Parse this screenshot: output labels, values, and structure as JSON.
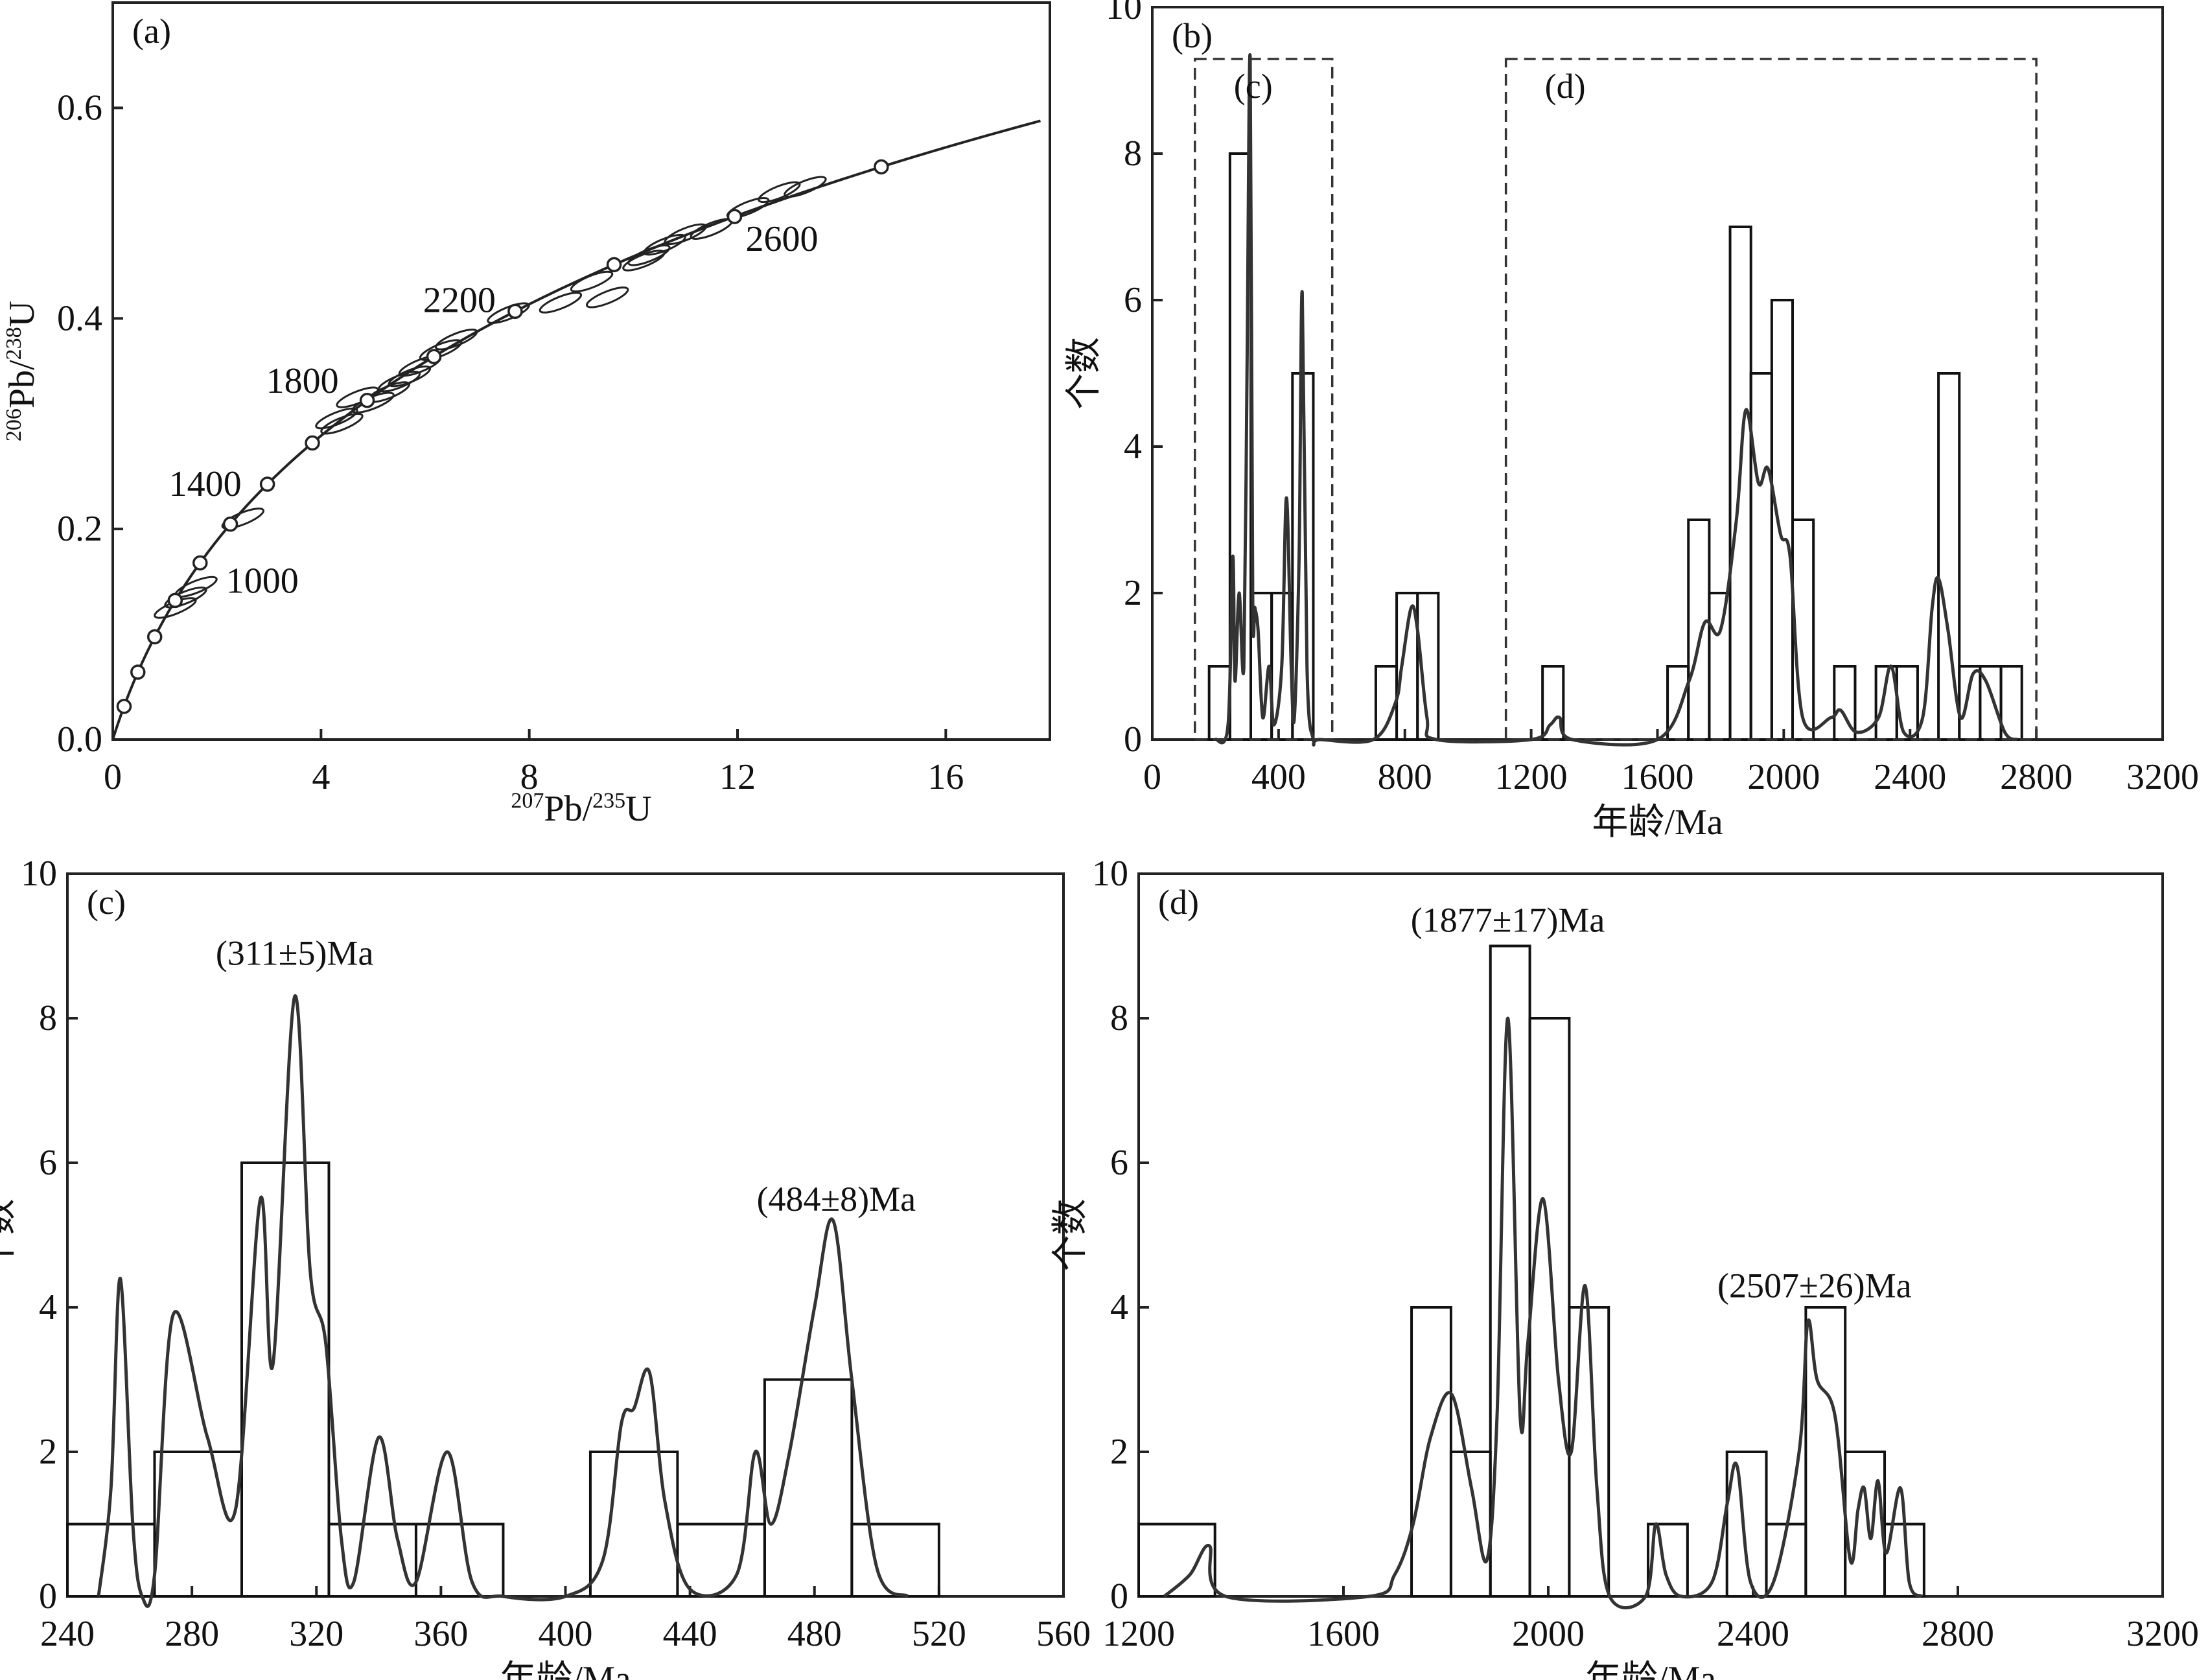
{
  "chart_data": [
    {
      "type": "concordia",
      "label": "(a)",
      "x_label": [
        "207",
        "Pb/",
        "235",
        "U"
      ],
      "y_label": [
        "206",
        "Pb/",
        "238",
        "U"
      ],
      "xlim": [
        0,
        18
      ],
      "ylim": [
        0,
        0.7
      ],
      "xticks": [
        0,
        4,
        8,
        12,
        16
      ],
      "yticks": [
        {
          "value": 0,
          "label": "0.0"
        },
        0.2,
        0.4,
        0.6
      ],
      "markers": [
        200,
        400,
        600,
        800,
        1000,
        1200,
        1400,
        1600,
        1800,
        2000,
        2200,
        2400,
        2600,
        2800
      ],
      "age_labels": [
        1000,
        1400,
        1800,
        2200,
        2600
      ],
      "points": {
        "x": [
          1.2,
          1.4,
          1.6,
          2.5,
          4.3,
          4.4,
          4.7,
          5.0,
          5.3,
          5.5,
          5.7,
          5.9,
          6.3,
          6.6,
          7.6,
          8.6,
          9.2,
          9.5,
          10.2,
          10.3,
          10.6,
          11.0,
          11.5,
          12.2,
          12.8,
          13.3
        ],
        "y": [
          0.125,
          0.135,
          0.145,
          0.21,
          0.305,
          0.3,
          0.325,
          0.32,
          0.33,
          0.34,
          0.345,
          0.355,
          0.37,
          0.38,
          0.405,
          0.415,
          0.435,
          0.42,
          0.455,
          0.46,
          0.47,
          0.48,
          0.485,
          0.505,
          0.52,
          0.525
        ]
      }
    },
    {
      "type": "histogram",
      "label": "(b)",
      "x_label": "年龄/Ma",
      "y_label": "个数",
      "xlim": [
        0,
        3200
      ],
      "ylim": [
        0,
        10
      ],
      "xticks": [
        0,
        400,
        800,
        1200,
        1600,
        2000,
        2400,
        2800,
        3200
      ],
      "yticks": [
        0,
        2,
        4,
        6,
        8,
        10
      ],
      "bins": [
        180,
        246,
        312,
        378,
        444,
        510,
        576,
        642,
        708,
        774,
        840,
        906,
        972,
        1038,
        1104,
        1170,
        1236,
        1302,
        1368,
        1434,
        1500,
        1566,
        1632,
        1698,
        1764,
        1830,
        1896,
        1962,
        2028,
        2094,
        2160,
        2226,
        2292,
        2358,
        2424,
        2490,
        2556,
        2622,
        2688,
        2754
      ],
      "counts": [
        1,
        8,
        2,
        2,
        5,
        0,
        0,
        0,
        1,
        2,
        2,
        0,
        0,
        0,
        0,
        0,
        1,
        0,
        0,
        0,
        0,
        0,
        1,
        3,
        2,
        7,
        5,
        6,
        3,
        0,
        1,
        0,
        1,
        1,
        0,
        5,
        1,
        1,
        1
      ],
      "curve": {
        "x": [
          200,
          240,
          255,
          262,
          275,
          290,
          300,
          310,
          318,
          325,
          335,
          350,
          370,
          385,
          410,
          425,
          440,
          450,
          465,
          475,
          490,
          510,
          530,
          700,
          770,
          790,
          820,
          840,
          870,
          900,
          1200,
          1260,
          1290,
          1330,
          1600,
          1700,
          1750,
          1800,
          1850,
          1880,
          1920,
          1950,
          1990,
          2020,
          2060,
          2150,
          2180,
          2230,
          2300,
          2340,
          2380,
          2440,
          2470,
          2490,
          2520,
          2560,
          2600,
          2640,
          2700,
          2740
        ],
        "y": [
          0,
          0.2,
          2.5,
          0.8,
          2,
          1,
          5,
          9.3,
          2,
          1.8,
          1.5,
          0.3,
          1,
          0.2,
          1,
          3.3,
          1,
          0.3,
          2.5,
          6.1,
          1,
          0,
          0,
          0,
          0.5,
          1,
          1.8,
          1.5,
          0.3,
          0,
          0,
          0.2,
          0.3,
          0,
          0,
          0.8,
          1.6,
          1.5,
          3,
          4.5,
          3.5,
          3.7,
          2.8,
          2.5,
          0.3,
          0.3,
          0.4,
          0.1,
          0.3,
          1,
          0.1,
          0.3,
          1.8,
          2.2,
          1.5,
          0.3,
          0.9,
          0.8,
          0.1,
          0
        ]
      },
      "zoom_boxes": [
        {
          "label": "(c)",
          "range": [
            135,
            570
          ]
        },
        {
          "label": "(d)",
          "range": [
            1120,
            2800
          ]
        }
      ]
    },
    {
      "type": "histogram",
      "label": "(c)",
      "x_label": "年龄/Ma",
      "y_label": "个数",
      "xlim": [
        240,
        560
      ],
      "ylim": [
        0,
        10
      ],
      "xticks": [
        240,
        280,
        320,
        360,
        400,
        440,
        480,
        520,
        560
      ],
      "yticks": [
        0,
        2,
        4,
        6,
        8,
        10
      ],
      "bins": [
        240,
        268,
        296,
        324,
        352,
        380,
        408,
        436,
        464,
        492,
        520
      ],
      "counts": [
        1,
        2,
        6,
        1,
        1,
        0,
        2,
        1,
        3,
        1
      ],
      "curve": {
        "x": [
          250,
          254,
          257,
          261,
          264,
          268,
          274,
          285,
          294,
          302,
          306,
          313,
          318,
          323,
          328,
          332,
          340,
          346,
          352,
          362,
          370,
          380,
          400,
          412,
          418,
          422,
          427,
          432,
          440,
          455,
          461,
          466,
          472,
          480,
          486,
          492,
          500,
          510
        ],
        "y": [
          0,
          1.5,
          4.4,
          1,
          0,
          0.3,
          3.9,
          2.2,
          1.2,
          5.5,
          3.2,
          8.3,
          4.5,
          3.5,
          0.8,
          0.2,
          2.2,
          0.8,
          0.2,
          2,
          0.2,
          0,
          0,
          0.5,
          2.4,
          2.6,
          3.1,
          1.3,
          0.1,
          0.3,
          2,
          1,
          2,
          4,
          5.2,
          3,
          0.4,
          0
        ]
      },
      "annotations": [
        "(311±5)Ma",
        "(484±8)Ma"
      ]
    },
    {
      "type": "histogram",
      "label": "(d)",
      "x_label": "年龄/Ma",
      "y_label": "个数",
      "xlim": [
        1200,
        3200
      ],
      "ylim": [
        0,
        10
      ],
      "xticks": [
        1200,
        1600,
        2000,
        2400,
        2800,
        3200
      ],
      "yticks": [
        0,
        2,
        4,
        6,
        8,
        10
      ],
      "bins": [
        1200,
        1349,
        1733,
        1810,
        1887,
        1964,
        2041,
        2118,
        2195,
        2272,
        2349,
        2426,
        2503,
        2580,
        2657,
        2734
      ],
      "counts": [
        1,
        0,
        4,
        2,
        9,
        8,
        4,
        0,
        1,
        0,
        2,
        1,
        4,
        2,
        1
      ],
      "curve": {
        "x": [
          1250,
          1300,
          1338,
          1370,
          1650,
          1700,
          1736,
          1770,
          1811,
          1850,
          1880,
          1900,
          1921,
          1945,
          1960,
          1990,
          2020,
          2045,
          2072,
          2095,
          2120,
          2190,
          2210,
          2230,
          2260,
          2320,
          2350,
          2369,
          2395,
          2440,
          2490,
          2507,
          2525,
          2560,
          2590,
          2605,
          2617,
          2630,
          2644,
          2660,
          2688,
          2705,
          2730
        ],
        "y": [
          0,
          0.3,
          0.7,
          0,
          0,
          0.3,
          1,
          2.2,
          2.8,
          1.5,
          0.5,
          2.5,
          8,
          2.5,
          3.5,
          5.5,
          3,
          2,
          4.3,
          1.5,
          0,
          0,
          1,
          0.3,
          0,
          0.2,
          1.3,
          1.8,
          0.2,
          0.2,
          2,
          3.8,
          3,
          2.5,
          0.5,
          1.2,
          1.5,
          0.8,
          1.6,
          0.6,
          1.5,
          0.2,
          0
        ]
      },
      "annotations": [
        "(1877±17)Ma",
        "(2507±26)Ma"
      ]
    }
  ]
}
